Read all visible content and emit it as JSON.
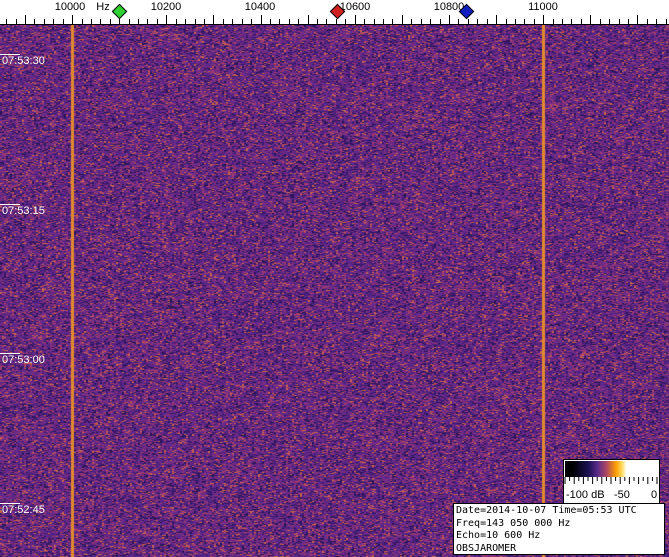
{
  "chart_data": {
    "type": "heatmap",
    "title": "",
    "x_unit": "Hz",
    "x_ticks": [
      "10000",
      "10200",
      "10400",
      "10600",
      "10800",
      "11000"
    ],
    "x_tick_values": [
      10000,
      10200,
      10400,
      10600,
      10800,
      11000
    ],
    "xlim": [
      9847,
      11267
    ],
    "y_ticks": [
      "07:53:30",
      "07:53:15",
      "07:53:00",
      "07:52:45"
    ],
    "carrier_lines_hz": [
      10000,
      11000
    ],
    "markers": [
      {
        "freq_hz": 10100,
        "color": "#30d030"
      },
      {
        "freq_hz": 10570,
        "color": "#d02020"
      },
      {
        "freq_hz": 10845,
        "color": "#1020c0"
      }
    ],
    "colorbar": {
      "labels": [
        "-100 dB",
        "-50",
        "0"
      ],
      "range_db": [
        -100,
        0
      ]
    }
  },
  "x_unit_label": "Hz",
  "info": {
    "line1": "Date=2014-10-07 Time=05:53 UTC",
    "line2": "Freq=143 050 000 Hz",
    "line3": "Echo=10 600 Hz",
    "line4": "OBSJAROMER"
  }
}
